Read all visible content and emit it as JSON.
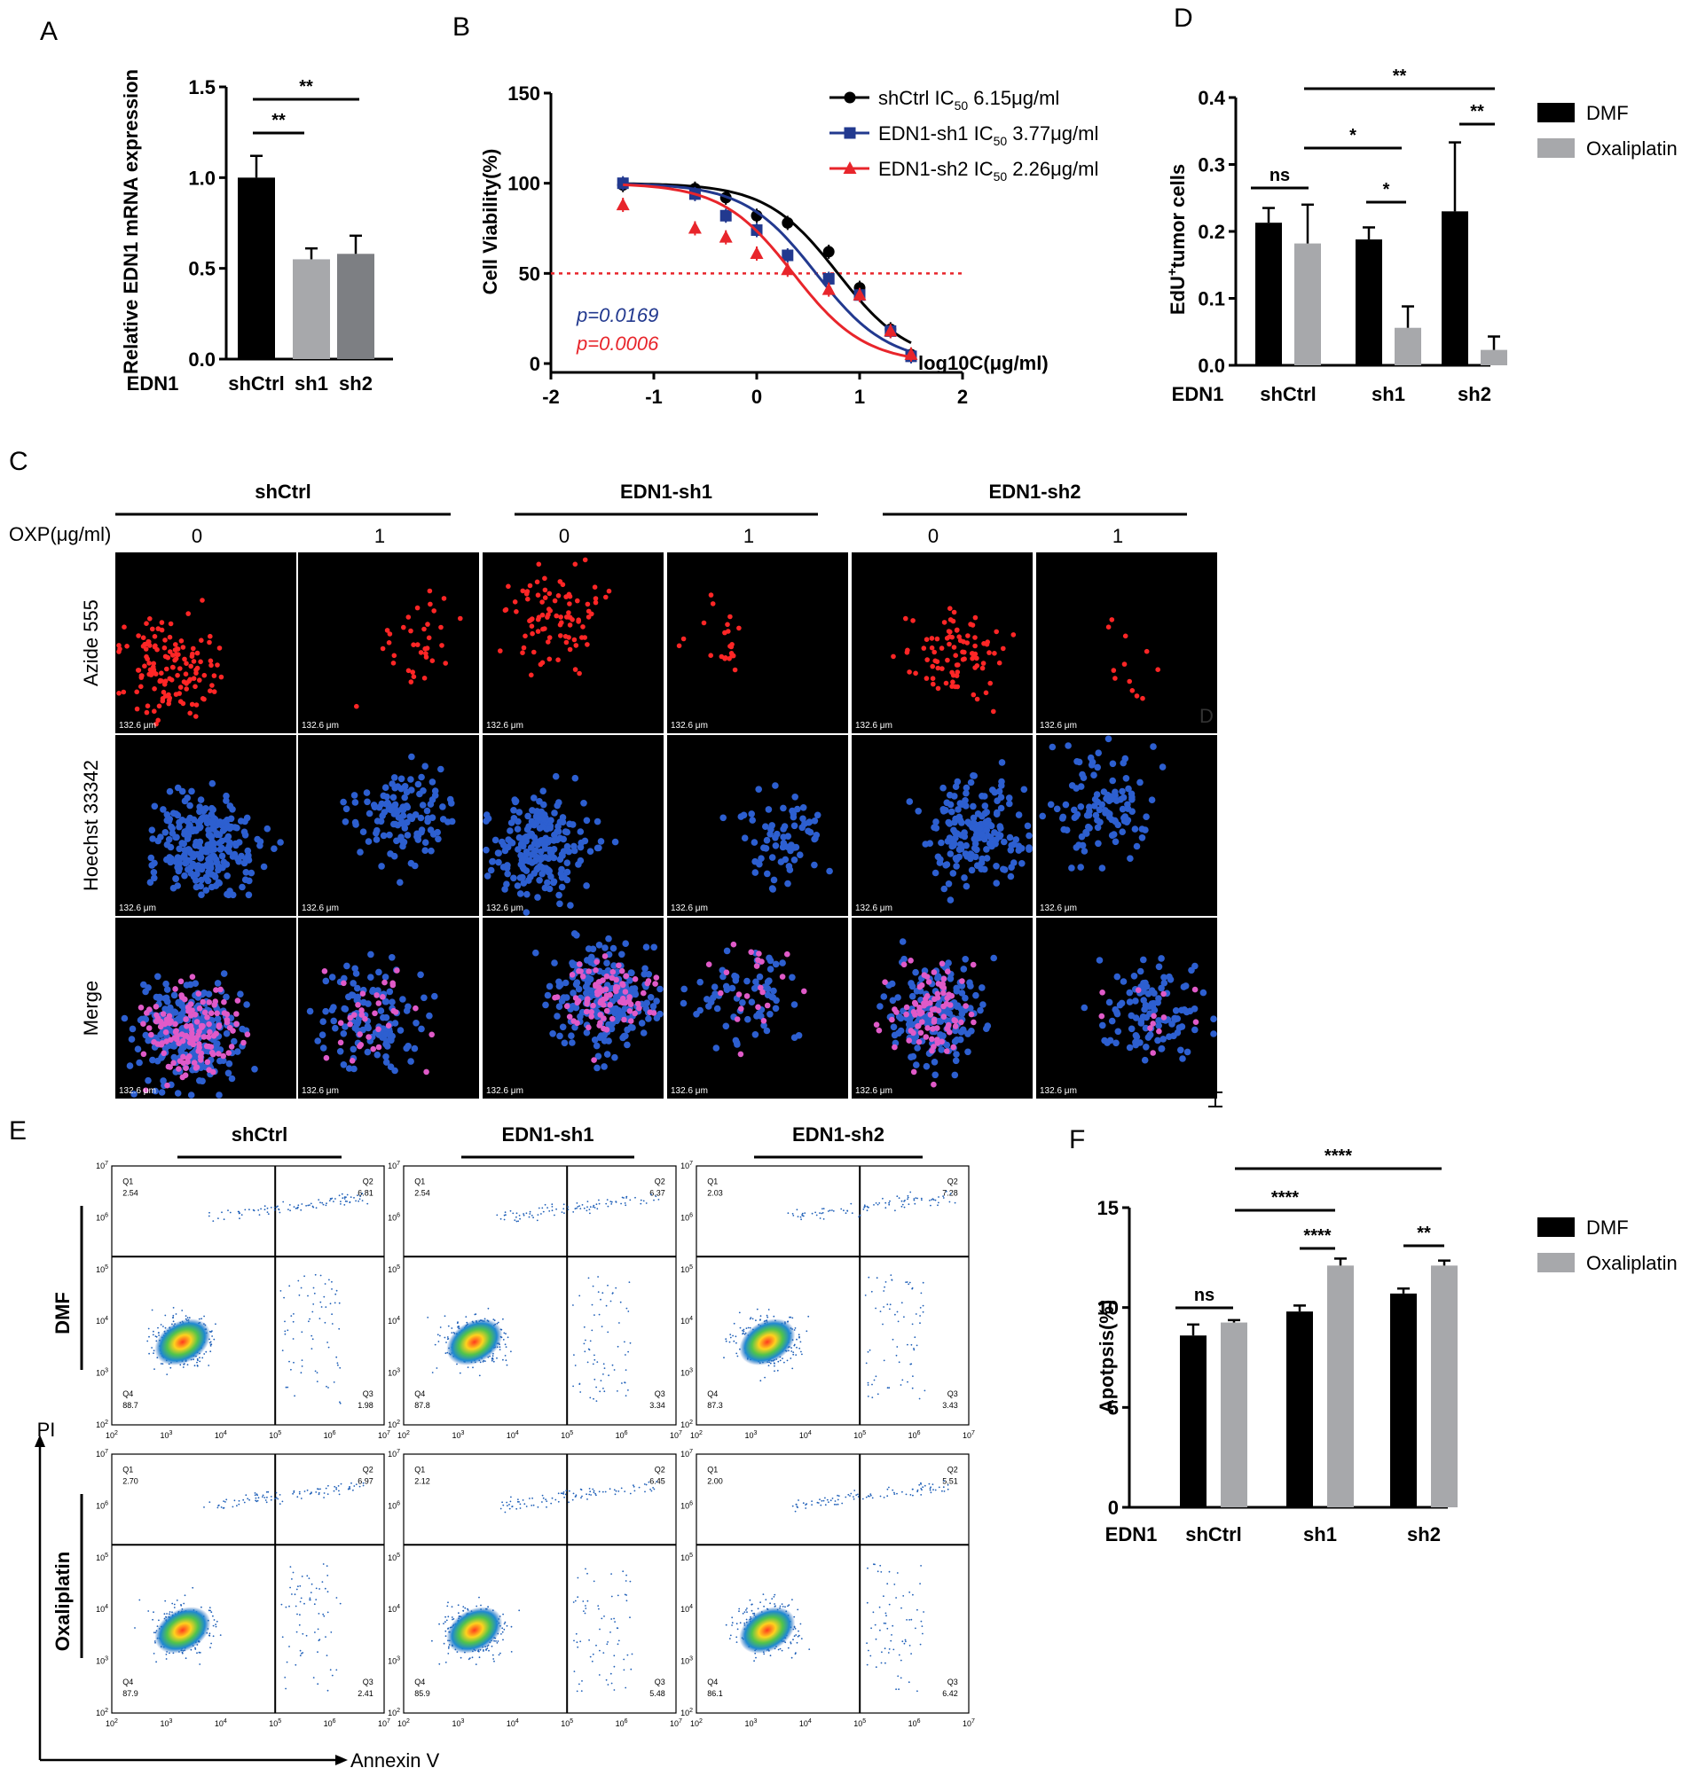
{
  "panel_labels": {
    "a": "A",
    "b": "B",
    "c": "C",
    "d": "D",
    "e": "E",
    "f": "F"
  },
  "chart_data": [
    {
      "id": "A",
      "type": "bar",
      "ylabel": "Relative EDN1 mRNA expression",
      "group_label": "EDN1",
      "categories": [
        "shCtrl",
        "sh1",
        "sh2"
      ],
      "values": [
        1.0,
        0.55,
        0.58
      ],
      "errors": [
        0.12,
        0.06,
        0.1
      ],
      "colors": [
        "#000000",
        "#a7a8ab",
        "#7d7f83"
      ],
      "ylim": [
        0,
        1.5
      ],
      "yticks": [
        "0.0",
        "0.5",
        "1.0",
        "1.5"
      ],
      "significance": [
        "**",
        "**"
      ]
    },
    {
      "id": "B",
      "type": "line",
      "ylabel": "Cell Viability(%)",
      "xlabel": "log10C(μg/ml)",
      "xlim": [
        -2,
        2
      ],
      "ylim": [
        0,
        150
      ],
      "xticks": [
        "-2",
        "-1",
        "0",
        "1",
        "2"
      ],
      "yticks": [
        "0",
        "50",
        "100",
        "150"
      ],
      "reference_line": 50,
      "x": [
        -1.3,
        -0.6,
        -0.3,
        0.0,
        0.3,
        0.7,
        1.0,
        1.3,
        1.5
      ],
      "series": [
        {
          "name": "shCtrl",
          "ic_label": "IC",
          "ic_sub": "50",
          "ic_value": "6.15μg/ml",
          "color": "#000000",
          "marker": "circle",
          "values": [
            99,
            97,
            92,
            82,
            78,
            62,
            42,
            19,
            5
          ],
          "ic50": 6.15
        },
        {
          "name": "EDN1-sh1",
          "ic_label": "IC",
          "ic_sub": "50",
          "ic_value": "3.77μg/ml",
          "color": "#22398f",
          "marker": "square",
          "values": [
            100,
            94,
            82,
            74,
            60,
            47,
            38,
            18,
            4
          ],
          "ic50": 3.77
        },
        {
          "name": "EDN1-sh2",
          "ic_label": "IC",
          "ic_sub": "50",
          "ic_value": "2.26μg/ml",
          "color": "#e8252b",
          "marker": "triangle",
          "values": [
            88,
            75,
            70,
            61,
            52,
            41,
            38,
            18,
            5
          ],
          "ic50": 2.26
        }
      ],
      "pvalues": [
        {
          "text": "p=0.0169",
          "color": "#22398f"
        },
        {
          "text": "p=0.0006",
          "color": "#e8252b"
        }
      ]
    },
    {
      "id": "D",
      "type": "bar",
      "ylabel_main": "EdU",
      "ylabel_sup": "+",
      "ylabel_tail": "tumor cells",
      "group_label": "EDN1",
      "ylim": [
        0,
        0.4
      ],
      "yticks": [
        "0.0",
        "0.1",
        "0.2",
        "0.3",
        "0.4"
      ],
      "categories": [
        "shCtrl",
        "sh1",
        "sh2"
      ],
      "series": [
        {
          "name": "DMF",
          "color": "#000000",
          "values": [
            0.213,
            0.188,
            0.23
          ],
          "errors": [
            0.022,
            0.018,
            0.103
          ]
        },
        {
          "name": "Oxaliplatin",
          "color": "#a7a8ab",
          "values": [
            0.182,
            0.056,
            0.023
          ],
          "errors": [
            0.058,
            0.032,
            0.02
          ]
        }
      ],
      "significance": [
        "ns",
        "*",
        "**",
        "*",
        "**"
      ]
    },
    {
      "id": "F",
      "type": "bar",
      "ylabel": "Apotpsis(%)",
      "group_label": "EDN1",
      "ylim": [
        0,
        15
      ],
      "yticks": [
        "0",
        "5",
        "10",
        "15"
      ],
      "categories": [
        "shCtrl",
        "sh1",
        "sh2"
      ],
      "series": [
        {
          "name": "DMF",
          "color": "#000000",
          "values": [
            8.6,
            9.8,
            10.7
          ],
          "errors": [
            0.55,
            0.3,
            0.25
          ]
        },
        {
          "name": "Oxaliplatin",
          "color": "#a7a8ab",
          "values": [
            9.25,
            12.1,
            12.1
          ],
          "errors": [
            0.12,
            0.35,
            0.25
          ]
        }
      ],
      "significance": [
        "ns",
        "****",
        "****",
        "****",
        "**"
      ]
    }
  ],
  "panel_c": {
    "groups": [
      "shCtrl",
      "EDN1-sh1",
      "EDN1-sh2"
    ],
    "dose_label": "OXP(μg/ml)",
    "doses": [
      "0",
      "1",
      "0",
      "1",
      "0",
      "1"
    ],
    "rows": [
      "Azide 555",
      "Hoechst 33342",
      "Merge"
    ],
    "scale_text": "132.6 μm",
    "stray_letter": "D"
  },
  "panel_e": {
    "groups": [
      "shCtrl",
      "EDN1-sh1",
      "EDN1-sh2"
    ],
    "rows": [
      "DMF",
      "Oxaliplatin"
    ],
    "yaxis": "PI",
    "xaxis": "Annexin V",
    "quadrant_names": [
      "Q1",
      "Q2",
      "Q3",
      "Q4"
    ],
    "quadrants": [
      [
        [
          "2.54",
          "6.81",
          "1.98",
          "88.7"
        ],
        [
          "2.54",
          "6.37",
          "3.34",
          "87.8"
        ],
        [
          "2.03",
          "7.28",
          "3.43",
          "87.3"
        ]
      ],
      [
        [
          "2.70",
          "6.97",
          "2.41",
          "87.9"
        ],
        [
          "2.12",
          "6.45",
          "5.48",
          "85.9"
        ],
        [
          "2.00",
          "5.51",
          "6.42",
          "86.1"
        ]
      ]
    ],
    "log_ticks": [
      "10",
      "2",
      "3",
      "4",
      "5",
      "6",
      "7"
    ]
  }
}
